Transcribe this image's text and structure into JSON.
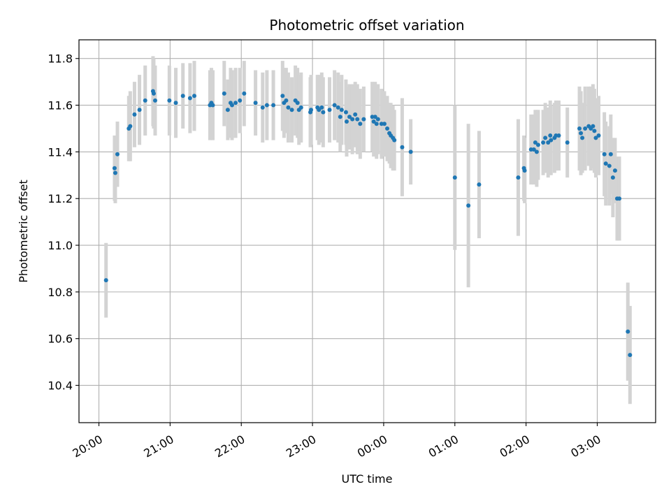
{
  "chart_data": {
    "type": "scatter",
    "title": "Photometric offset variation",
    "xlabel": "UTC time",
    "ylabel": "Photometric offset",
    "grid": true,
    "x_unit": "hours after 20:00 UTC",
    "xlim": [
      -0.28,
      7.82
    ],
    "ylim": [
      10.24,
      11.88
    ],
    "x_ticks": [
      0,
      1,
      2,
      3,
      4,
      5,
      6,
      7
    ],
    "x_tick_labels": [
      "20:00",
      "21:00",
      "22:00",
      "23:00",
      "00:00",
      "01:00",
      "02:00",
      "03:00"
    ],
    "y_ticks": [
      10.4,
      10.6,
      10.8,
      11.0,
      11.2,
      11.4,
      11.6,
      11.8
    ],
    "y_tick_labels": [
      "10.4",
      "10.6",
      "10.8",
      "11.0",
      "11.2",
      "11.4",
      "11.6",
      "11.8"
    ],
    "marker_color": "#1f77b4",
    "errorbar_color": "#d3d3d3",
    "points": [
      [
        0.1,
        10.85,
        0.16
      ],
      [
        0.22,
        11.33,
        0.14
      ],
      [
        0.23,
        11.31,
        0.13
      ],
      [
        0.26,
        11.39,
        0.14
      ],
      [
        0.42,
        11.5,
        0.14
      ],
      [
        0.44,
        11.51,
        0.15
      ],
      [
        0.5,
        11.56,
        0.14
      ],
      [
        0.57,
        11.58,
        0.15
      ],
      [
        0.65,
        11.62,
        0.15
      ],
      [
        0.76,
        11.66,
        0.15
      ],
      [
        0.77,
        11.65,
        0.15
      ],
      [
        0.79,
        11.62,
        0.15
      ],
      [
        0.99,
        11.62,
        0.15
      ],
      [
        1.08,
        11.61,
        0.15
      ],
      [
        1.18,
        11.64,
        0.14
      ],
      [
        1.28,
        11.63,
        0.15
      ],
      [
        1.34,
        11.64,
        0.15
      ],
      [
        1.56,
        11.6,
        0.15
      ],
      [
        1.58,
        11.61,
        0.15
      ],
      [
        1.6,
        11.6,
        0.15
      ],
      [
        1.76,
        11.65,
        0.14
      ],
      [
        1.81,
        11.58,
        0.13
      ],
      [
        1.85,
        11.61,
        0.15
      ],
      [
        1.87,
        11.6,
        0.15
      ],
      [
        1.92,
        11.61,
        0.15
      ],
      [
        1.98,
        11.62,
        0.14
      ],
      [
        2.04,
        11.65,
        0.14
      ],
      [
        2.2,
        11.61,
        0.14
      ],
      [
        2.3,
        11.59,
        0.15
      ],
      [
        2.36,
        11.6,
        0.15
      ],
      [
        2.45,
        11.6,
        0.15
      ],
      [
        2.58,
        11.64,
        0.15
      ],
      [
        2.6,
        11.61,
        0.15
      ],
      [
        2.63,
        11.62,
        0.14
      ],
      [
        2.66,
        11.59,
        0.15
      ],
      [
        2.71,
        11.58,
        0.14
      ],
      [
        2.76,
        11.62,
        0.15
      ],
      [
        2.79,
        11.61,
        0.15
      ],
      [
        2.81,
        11.58,
        0.15
      ],
      [
        2.84,
        11.59,
        0.15
      ],
      [
        2.97,
        11.57,
        0.15
      ],
      [
        2.98,
        11.58,
        0.15
      ],
      [
        3.07,
        11.59,
        0.14
      ],
      [
        3.09,
        11.58,
        0.15
      ],
      [
        3.13,
        11.59,
        0.15
      ],
      [
        3.15,
        11.57,
        0.15
      ],
      [
        3.24,
        11.58,
        0.14
      ],
      [
        3.31,
        11.6,
        0.15
      ],
      [
        3.36,
        11.59,
        0.15
      ],
      [
        3.39,
        11.55,
        0.15
      ],
      [
        3.41,
        11.58,
        0.15
      ],
      [
        3.47,
        11.57,
        0.14
      ],
      [
        3.48,
        11.53,
        0.15
      ],
      [
        3.52,
        11.55,
        0.14
      ],
      [
        3.56,
        11.54,
        0.15
      ],
      [
        3.6,
        11.56,
        0.14
      ],
      [
        3.63,
        11.54,
        0.15
      ],
      [
        3.67,
        11.52,
        0.15
      ],
      [
        3.72,
        11.54,
        0.14
      ],
      [
        3.84,
        11.55,
        0.15
      ],
      [
        3.86,
        11.53,
        0.15
      ],
      [
        3.88,
        11.55,
        0.15
      ],
      [
        3.9,
        11.52,
        0.15
      ],
      [
        3.92,
        11.54,
        0.15
      ],
      [
        3.97,
        11.52,
        0.15
      ],
      [
        4.01,
        11.52,
        0.14
      ],
      [
        4.05,
        11.5,
        0.14
      ],
      [
        4.08,
        11.48,
        0.13
      ],
      [
        4.1,
        11.47,
        0.14
      ],
      [
        4.13,
        11.46,
        0.14
      ],
      [
        4.15,
        11.45,
        0.13
      ],
      [
        4.26,
        11.42,
        0.21
      ],
      [
        4.38,
        11.4,
        0.14
      ],
      [
        5.0,
        11.29,
        0.31
      ],
      [
        5.19,
        11.17,
        0.35
      ],
      [
        5.34,
        11.26,
        0.23
      ],
      [
        5.89,
        11.29,
        0.25
      ],
      [
        5.97,
        11.33,
        0.14
      ],
      [
        5.98,
        11.32,
        0.14
      ],
      [
        6.07,
        11.41,
        0.15
      ],
      [
        6.11,
        11.41,
        0.15
      ],
      [
        6.13,
        11.44,
        0.14
      ],
      [
        6.15,
        11.4,
        0.15
      ],
      [
        6.17,
        11.43,
        0.15
      ],
      [
        6.24,
        11.44,
        0.14
      ],
      [
        6.27,
        11.46,
        0.15
      ],
      [
        6.31,
        11.44,
        0.15
      ],
      [
        6.34,
        11.47,
        0.15
      ],
      [
        6.35,
        11.45,
        0.15
      ],
      [
        6.4,
        11.46,
        0.15
      ],
      [
        6.42,
        11.47,
        0.15
      ],
      [
        6.46,
        11.47,
        0.15
      ],
      [
        6.58,
        11.44,
        0.15
      ],
      [
        6.75,
        11.5,
        0.18
      ],
      [
        6.77,
        11.48,
        0.18
      ],
      [
        6.79,
        11.46,
        0.15
      ],
      [
        6.83,
        11.5,
        0.18
      ],
      [
        6.88,
        11.51,
        0.17
      ],
      [
        6.91,
        11.5,
        0.18
      ],
      [
        6.94,
        11.51,
        0.18
      ],
      [
        6.96,
        11.49,
        0.18
      ],
      [
        6.98,
        11.46,
        0.17
      ],
      [
        7.02,
        11.47,
        0.17
      ],
      [
        7.1,
        11.39,
        0.18
      ],
      [
        7.12,
        11.35,
        0.18
      ],
      [
        7.17,
        11.34,
        0.17
      ],
      [
        7.19,
        11.39,
        0.17
      ],
      [
        7.22,
        11.29,
        0.17
      ],
      [
        7.25,
        11.32,
        0.14
      ],
      [
        7.28,
        11.2,
        0.18
      ],
      [
        7.31,
        11.2,
        0.18
      ],
      [
        7.43,
        10.63,
        0.21
      ],
      [
        7.46,
        10.53,
        0.21
      ]
    ]
  }
}
